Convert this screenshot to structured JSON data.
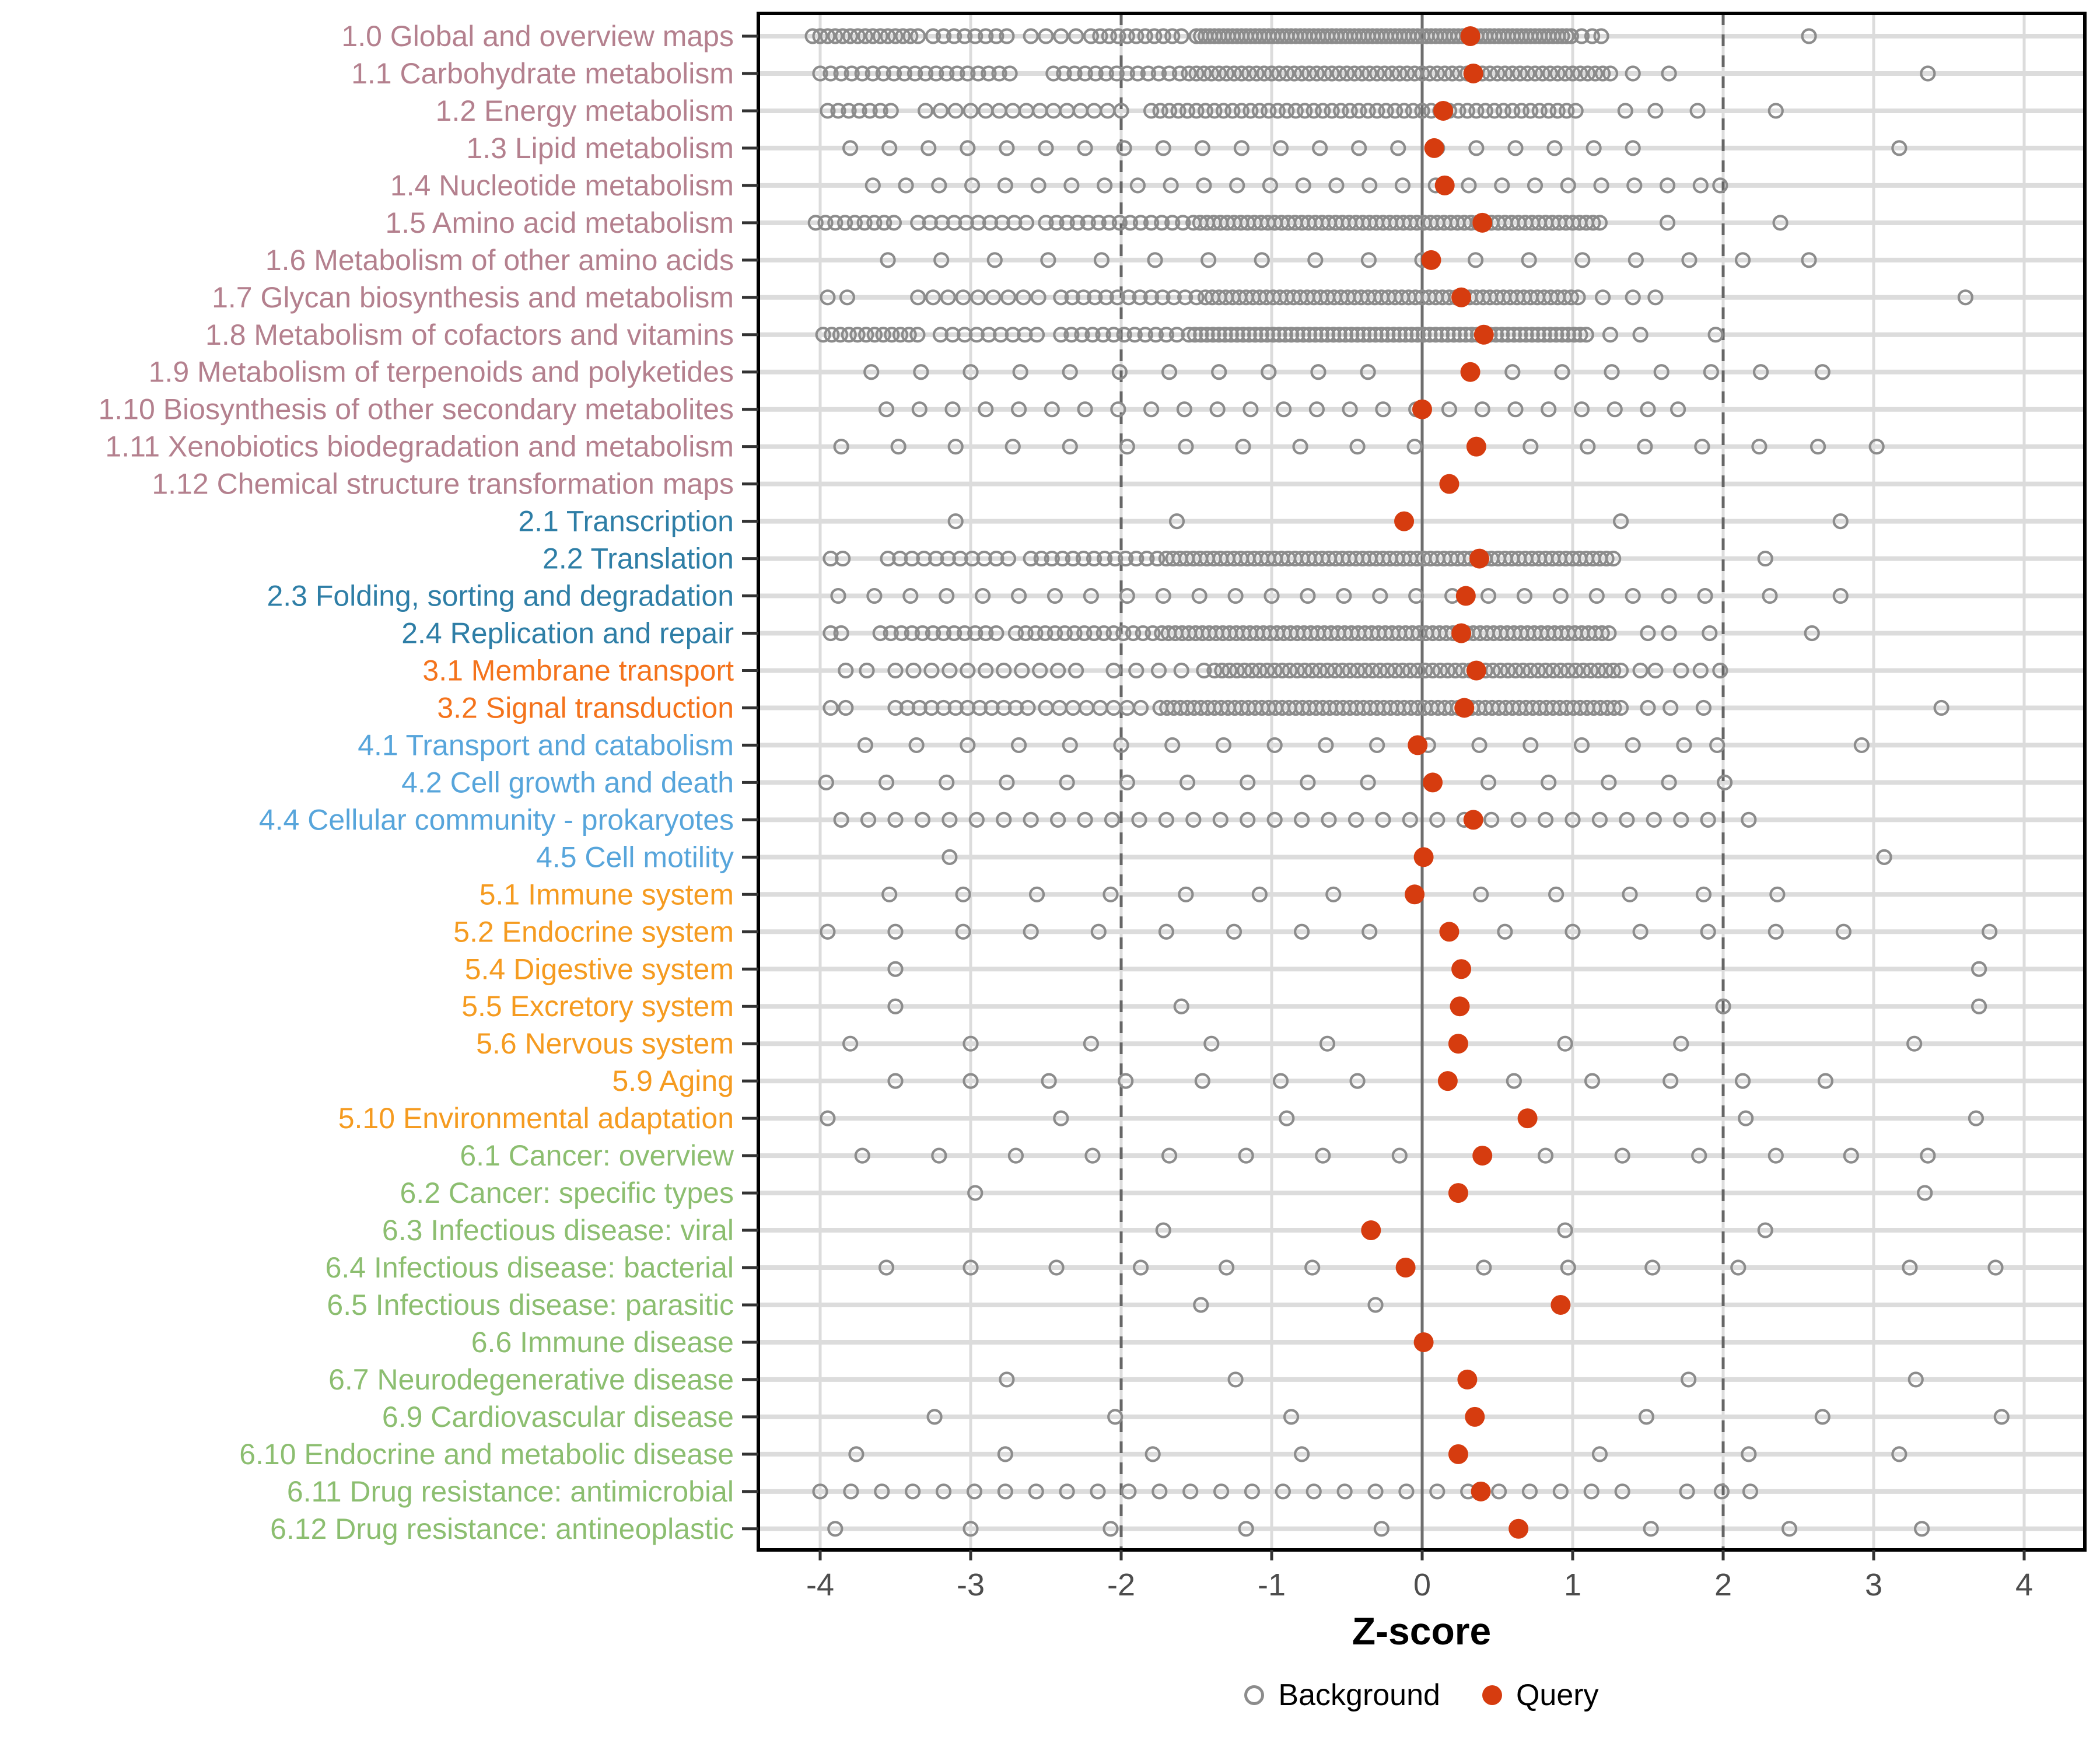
{
  "axis": {
    "xlabel": "Z-score",
    "xticks": [
      -4,
      -3,
      -2,
      -1,
      0,
      1,
      2,
      3,
      4
    ],
    "xtick_labels": [
      "-4",
      "-3",
      "-2",
      "-1",
      "0",
      "1",
      "2",
      "3",
      "4"
    ],
    "xmin": -4.4,
    "xmax": 4.4,
    "zero_line": 0,
    "dashed_lines": [
      -2,
      2
    ]
  },
  "legend": {
    "background_label": "Background",
    "query_label": "Query"
  },
  "colors": {
    "group1": "#B4808E",
    "group2": "#2E7EA6",
    "group3": "#F4731C",
    "group4": "#57A5DB",
    "group5": "#F59B20",
    "group6": "#8CBE70",
    "query": "#D63C0F",
    "background_stroke": "#8C8C8C",
    "grid": "#DCDCDC",
    "zero_line": "#6E6E6E",
    "dashed_line": "#666666",
    "axis_text": "#4D4D4D",
    "tick": "#333333",
    "border": "#000000"
  },
  "chart_data": {
    "type": "scatter",
    "subtype": "horizontal-dot-plot",
    "title": "",
    "xlabel": "Z-score",
    "ylabel": "",
    "xlim": [
      -4.4,
      4.4
    ],
    "grid": true,
    "legend_position": "bottom",
    "series_note": "Each category row: q = Query z-score (filled red), bg = Background z-scores (open gray). bg.r = [from,to,step] ranges, bg.p = individual points.",
    "categories": [
      {
        "label": "1.0 Global and overview maps",
        "g": "group1",
        "q": 0.32,
        "bg": {
          "r": [
            [
              -4.05,
              -3.35,
              0.05
            ],
            [
              -3.25,
              -2.75,
              0.07
            ],
            [
              -2.6,
              -2.3,
              0.1
            ],
            [
              -2.2,
              -1.55,
              0.06
            ],
            [
              -1.5,
              1.0,
              0.03
            ]
          ],
          "p": [
            1.06,
            1.13,
            1.19,
            2.57
          ]
        }
      },
      {
        "label": "1.1 Carbohydrate metabolism",
        "g": "group1",
        "q": 0.34,
        "bg": {
          "r": [
            [
              -4.0,
              -2.74,
              0.07
            ],
            [
              -2.45,
              -1.61,
              0.07
            ],
            [
              -1.55,
              1.25,
              0.05
            ]
          ],
          "p": [
            1.4,
            1.64,
            3.36
          ]
        }
      },
      {
        "label": "1.2 Energy metabolism",
        "g": "group1",
        "q": 0.14,
        "bg": {
          "r": [
            [
              -3.95,
              -3.53,
              0.07
            ],
            [
              -3.3,
              -3.0,
              0.1
            ],
            [
              -2.9,
              -2.0,
              0.09
            ],
            [
              -1.8,
              1.02,
              0.06
            ]
          ],
          "p": [
            1.35,
            1.55,
            1.83,
            2.35
          ]
        }
      },
      {
        "label": "1.3 Lipid metabolism",
        "g": "group1",
        "q": 0.08,
        "bg": {
          "r": [
            [
              -3.8,
              1.4,
              0.26
            ]
          ],
          "p": [
            3.17
          ]
        }
      },
      {
        "label": "1.4 Nucleotide metabolism",
        "g": "group1",
        "q": 0.15,
        "bg": {
          "r": [
            [
              -3.65,
              1.85,
              0.22
            ]
          ],
          "p": [
            1.98
          ]
        }
      },
      {
        "label": "1.5 Amino acid metabolism",
        "g": "group1",
        "q": 0.4,
        "bg": {
          "r": [
            [
              -4.03,
              -3.45,
              0.065
            ],
            [
              -3.35,
              -2.63,
              0.08
            ],
            [
              -2.5,
              -1.59,
              0.07
            ],
            [
              -1.52,
              1.18,
              0.045
            ]
          ],
          "p": [
            1.63,
            2.38
          ]
        }
      },
      {
        "label": "1.6 Metabolism of other amino acids",
        "g": "group1",
        "q": 0.06,
        "bg": {
          "r": [
            [
              -3.55,
              2.2,
              0.355
            ]
          ],
          "p": [
            2.57
          ]
        }
      },
      {
        "label": "1.7 Glycan biosynthesis and metabolism",
        "g": "group1",
        "q": 0.26,
        "bg": {
          "r": [
            [
              -3.35,
              -2.55,
              0.1
            ],
            [
              -2.4,
              -1.5,
              0.075
            ],
            [
              -1.44,
              1.04,
              0.045
            ]
          ],
          "p": [
            -3.95,
            -3.82,
            1.2,
            1.4,
            1.55,
            3.61
          ]
        }
      },
      {
        "label": "1.8 Metabolism of cofactors and vitamins",
        "g": "group1",
        "q": 0.41,
        "bg": {
          "r": [
            [
              -3.98,
              -3.3,
              0.057
            ],
            [
              -3.2,
              -2.5,
              0.08
            ],
            [
              -2.4,
              -1.63,
              0.07
            ],
            [
              -1.55,
              1.09,
              0.04
            ]
          ],
          "p": [
            1.25,
            1.45,
            1.95
          ]
        }
      },
      {
        "label": "1.9 Metabolism of terpenoids and polyketides",
        "g": "group1",
        "q": 0.32,
        "bg": {
          "p": [
            -3.66,
            -3.33,
            -3.0,
            -2.67,
            -2.34,
            -2.01,
            -1.68,
            -1.35,
            -1.02,
            -0.69,
            -0.36,
            0.6,
            0.93,
            1.26,
            1.59,
            1.92,
            2.25,
            2.66
          ]
        }
      },
      {
        "label": "1.10 Biosynthesis of other secondary metabolites",
        "g": "group1",
        "q": 0.0,
        "bg": {
          "r": [
            [
              -3.56,
              1.5,
              0.22
            ]
          ],
          "p": [
            1.7
          ]
        }
      },
      {
        "label": "1.11 Xenobiotics biodegradation and metabolism",
        "g": "group1",
        "q": 0.36,
        "bg": {
          "p": [
            -3.86,
            -3.48,
            -3.1,
            -2.72,
            -2.34,
            -1.96,
            -1.57,
            -1.19,
            -0.81,
            -0.43,
            -0.05,
            0.72,
            1.1,
            1.48,
            1.86,
            2.24,
            2.63,
            3.02
          ]
        }
      },
      {
        "label": "1.12 Chemical structure transformation maps",
        "g": "group1",
        "q": 0.18,
        "bg": {
          "p": []
        }
      },
      {
        "label": "2.1 Transcription",
        "g": "group2",
        "q": -0.12,
        "bg": {
          "p": [
            -3.1,
            -1.63,
            1.32,
            2.78
          ]
        }
      },
      {
        "label": "2.2 Translation",
        "g": "group2",
        "q": 0.38,
        "bg": {
          "r": [
            [
              -3.55,
              -2.75,
              0.08
            ],
            [
              -2.6,
              -1.76,
              0.07
            ],
            [
              -1.7,
              1.31,
              0.045
            ]
          ],
          "p": [
            -3.93,
            -3.85,
            2.28
          ]
        }
      },
      {
        "label": "2.3 Folding, sorting and degradation",
        "g": "group2",
        "q": 0.29,
        "bg": {
          "r": [
            [
              -3.88,
              1.88,
              0.24
            ]
          ],
          "p": [
            2.31,
            2.78
          ]
        }
      },
      {
        "label": "2.4 Replication and repair",
        "g": "group2",
        "q": 0.26,
        "bg": {
          "r": [
            [
              -3.6,
              -2.83,
              0.07
            ],
            [
              -2.7,
              -1.79,
              0.065
            ],
            [
              -1.73,
              1.28,
              0.045
            ]
          ],
          "p": [
            -3.93,
            -3.86,
            1.5,
            1.64,
            1.91,
            2.59
          ]
        }
      },
      {
        "label": "3.1 Membrane transport",
        "g": "group3",
        "q": 0.36,
        "bg": {
          "r": [
            [
              -3.5,
              -2.2,
              0.12
            ],
            [
              -2.05,
              -1.45,
              0.15
            ],
            [
              -1.38,
              1.32,
              0.05
            ]
          ],
          "p": [
            -3.83,
            -3.69,
            1.45,
            1.55,
            1.72,
            1.85,
            1.98
          ]
        }
      },
      {
        "label": "3.2 Signal transduction",
        "g": "group3",
        "q": 0.28,
        "bg": {
          "r": [
            [
              -3.5,
              -2.62,
              0.08
            ],
            [
              -2.5,
              -1.8,
              0.09
            ],
            [
              -1.74,
              1.36,
              0.045
            ]
          ],
          "p": [
            -3.93,
            -3.83,
            1.5,
            1.65,
            1.87,
            3.45
          ]
        }
      },
      {
        "label": "4.1 Transport and catabolism",
        "g": "group4",
        "q": -0.03,
        "bg": {
          "r": [
            [
              -3.7,
              1.74,
              0.34
            ]
          ],
          "p": [
            1.96,
            2.92
          ]
        }
      },
      {
        "label": "4.2 Cell growth and death",
        "g": "group4",
        "q": 0.07,
        "bg": {
          "p": [
            -3.96,
            -3.56,
            -3.16,
            -2.76,
            -2.36,
            -1.96,
            -1.56,
            -1.16,
            -0.76,
            -0.36,
            0.44,
            0.84,
            1.24,
            1.64,
            2.01
          ]
        }
      },
      {
        "label": "4.4 Cellular community - prokaryotes",
        "g": "group4",
        "q": 0.34,
        "bg": {
          "r": [
            [
              -3.86,
              1.72,
              0.18
            ]
          ],
          "p": [
            1.9,
            2.17
          ]
        }
      },
      {
        "label": "4.5 Cell motility",
        "g": "group4",
        "q": 0.01,
        "bg": {
          "p": [
            -3.14,
            3.07
          ]
        }
      },
      {
        "label": "5.1 Immune system",
        "g": "group5",
        "q": -0.05,
        "bg": {
          "p": [
            -3.54,
            -3.05,
            -2.56,
            -2.07,
            -1.57,
            -1.08,
            -0.59,
            0.39,
            0.89,
            1.38,
            1.87,
            2.36
          ]
        }
      },
      {
        "label": "5.2 Endocrine system",
        "g": "group5",
        "q": 0.18,
        "bg": {
          "p": [
            -3.95,
            -3.5,
            -3.05,
            -2.6,
            -2.15,
            -1.7,
            -1.25,
            -0.8,
            -0.35,
            0.55,
            1.0,
            1.45,
            1.9,
            2.35,
            2.8,
            3.77
          ]
        }
      },
      {
        "label": "5.4 Digestive system",
        "g": "group5",
        "q": 0.26,
        "bg": {
          "p": [
            -3.5,
            3.7
          ]
        }
      },
      {
        "label": "5.5 Excretory system",
        "g": "group5",
        "q": 0.25,
        "bg": {
          "p": [
            -3.5,
            -1.6,
            2.0,
            3.7
          ]
        }
      },
      {
        "label": "5.6 Nervous system",
        "g": "group5",
        "q": 0.24,
        "bg": {
          "p": [
            -3.8,
            -3.0,
            -2.2,
            -1.4,
            -0.63,
            0.95,
            1.72,
            3.27
          ]
        }
      },
      {
        "label": "5.9 Aging",
        "g": "group5",
        "q": 0.17,
        "bg": {
          "p": [
            -3.5,
            -3.0,
            -2.48,
            -1.97,
            -1.46,
            -0.94,
            -0.43,
            0.61,
            1.13,
            1.65,
            2.13,
            2.68
          ]
        }
      },
      {
        "label": "5.10 Environmental adaptation",
        "g": "group5",
        "q": 0.7,
        "bg": {
          "p": [
            -3.95,
            -2.4,
            -0.9,
            2.15,
            3.68
          ]
        }
      },
      {
        "label": "6.1 Cancer: overview",
        "g": "group6",
        "q": 0.4,
        "bg": {
          "p": [
            -3.72,
            -3.21,
            -2.7,
            -2.19,
            -1.68,
            -1.17,
            -0.66,
            -0.15,
            0.82,
            1.33,
            1.84,
            2.35,
            2.85,
            3.36
          ]
        }
      },
      {
        "label": "6.2 Cancer: specific types",
        "g": "group6",
        "q": 0.24,
        "bg": {
          "p": [
            -2.97,
            3.34
          ]
        }
      },
      {
        "label": "6.3 Infectious disease: viral",
        "g": "group6",
        "q": -0.34,
        "bg": {
          "p": [
            -1.72,
            0.95,
            2.28
          ]
        }
      },
      {
        "label": "6.4 Infectious disease: bacterial",
        "g": "group6",
        "q": -0.11,
        "bg": {
          "p": [
            -3.56,
            -3.0,
            -2.43,
            -1.87,
            -1.3,
            -0.73,
            0.41,
            0.97,
            1.53,
            2.1,
            3.24,
            3.81
          ]
        }
      },
      {
        "label": "6.5 Infectious disease: parasitic",
        "g": "group6",
        "q": 0.92,
        "bg": {
          "p": [
            -1.47,
            -0.31
          ]
        }
      },
      {
        "label": "6.6 Immune disease",
        "g": "group6",
        "q": 0.01,
        "bg": {
          "p": []
        }
      },
      {
        "label": "6.7 Neurodegenerative disease",
        "g": "group6",
        "q": 0.3,
        "bg": {
          "p": [
            -2.76,
            -1.24,
            1.77,
            3.28
          ]
        }
      },
      {
        "label": "6.9 Cardiovascular disease",
        "g": "group6",
        "q": 0.35,
        "bg": {
          "p": [
            -3.24,
            -2.04,
            -0.87,
            1.49,
            2.66,
            3.85
          ]
        }
      },
      {
        "label": "6.10 Endocrine and metabolic disease",
        "g": "group6",
        "q": 0.24,
        "bg": {
          "p": [
            -3.76,
            -2.77,
            -1.79,
            -0.8,
            1.18,
            2.17,
            3.17
          ]
        }
      },
      {
        "label": "6.11 Drug resistance: antimicrobial",
        "g": "group6",
        "q": 0.39,
        "bg": {
          "r": [
            [
              -4.0,
              1.36,
              0.205
            ]
          ],
          "p": [
            1.76,
            1.99,
            2.18
          ]
        }
      },
      {
        "label": "6.12 Drug resistance: antineoplastic",
        "g": "group6",
        "q": 0.64,
        "bg": {
          "p": [
            -3.9,
            -3.0,
            -2.07,
            -1.17,
            -0.27,
            1.52,
            2.44,
            3.32
          ]
        }
      }
    ]
  }
}
